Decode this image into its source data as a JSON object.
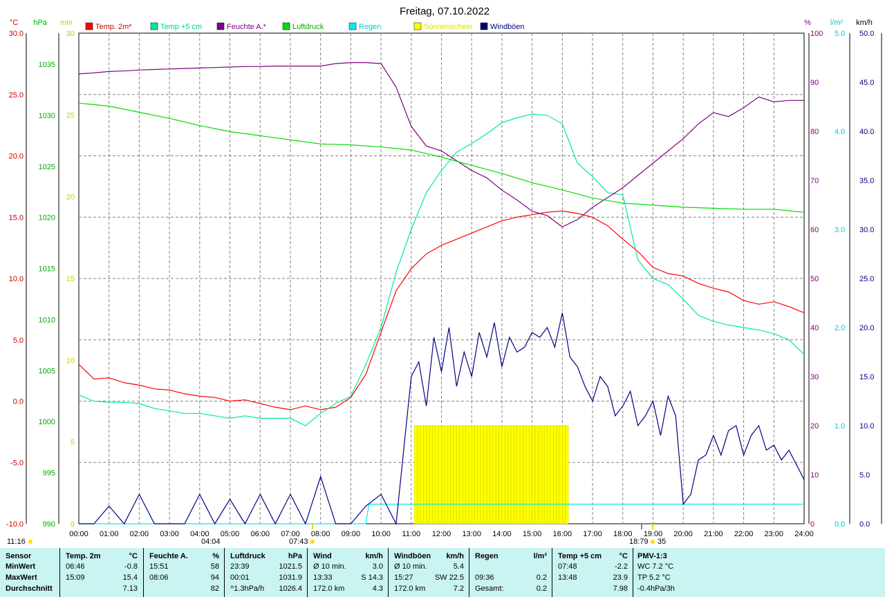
{
  "title": "Freitag, 07.10.2022",
  "colors": {
    "temp2m": "#ff0000",
    "temp5cm": "#00e8a0",
    "feuchte": "#800080",
    "luftdruck": "#00dd00",
    "regen": "#00eeee",
    "sonne": "#ffff00",
    "wind": "#000080",
    "stats_bg": "#c9f4f2"
  },
  "units": {
    "temp": "°C",
    "hpa": "hPa",
    "min": "min",
    "pct": "%",
    "rain": "l/m²",
    "kmh": "km/h"
  },
  "legend": [
    "Temp. 2m*",
    "Temp +5 cm",
    "Feuchte A.*",
    "Luftdruck",
    "Regen",
    "Sonnenschein",
    "Windböen"
  ],
  "axes": {
    "x_ticks": [
      "00:00",
      "01:00",
      "02:00",
      "03:00",
      "04:00",
      "05:00",
      "06:00",
      "07:00",
      "08:00",
      "09:00",
      "10:00",
      "11:00",
      "12:00",
      "13:00",
      "14:00",
      "15:00",
      "16:00",
      "17:00",
      "18:00",
      "19:00",
      "20:00",
      "21:00",
      "22:00",
      "23:00",
      "24:00"
    ],
    "temp_ticks": [
      "30.0",
      "25.0",
      "20.0",
      "15.0",
      "10.0",
      "5.0",
      "0.0",
      "-5.0",
      "-10.0"
    ],
    "hpa_ticks": [
      "1035",
      "1030",
      "1025",
      "1020",
      "1015",
      "1010",
      "1005",
      "1000",
      "995",
      "990"
    ],
    "min_ticks": [
      "30",
      "25",
      "20",
      "15",
      "10",
      "5",
      "0"
    ],
    "pct_ticks": [
      "100",
      "90",
      "80",
      "70",
      "60",
      "50",
      "40",
      "30",
      "20",
      "10",
      "0"
    ],
    "rain_ticks": [
      "5.0",
      "4.0",
      "3.0",
      "2.0",
      "1.0",
      "0.0"
    ],
    "kmh_ticks": [
      "50.0",
      "45.0",
      "40.0",
      "35.0",
      "30.0",
      "25.0",
      "20.0",
      "15.0",
      "10.0",
      "5.0",
      "0.0"
    ]
  },
  "sun_events": {
    "now": "11:16",
    "sunrise_marker": "04:04",
    "sunrise": "07:43",
    "sunset": "18:79",
    "sunset_minutes": "35"
  },
  "chart_data": {
    "type": "line",
    "x_unit": "hour",
    "series": [
      {
        "name": "Temp. 2m*",
        "axis": "°C",
        "x": [
          0,
          0.5,
          1,
          1.5,
          2,
          2.5,
          3,
          3.5,
          4,
          4.5,
          5,
          5.5,
          6,
          6.5,
          7,
          7.5,
          8,
          8.5,
          9,
          9.5,
          10,
          10.5,
          11,
          11.5,
          12,
          12.5,
          13,
          13.5,
          14,
          14.5,
          15,
          15.5,
          16,
          16.5,
          17,
          17.5,
          18,
          18.5,
          19,
          19.5,
          20,
          20.5,
          21,
          21.5,
          22,
          22.5,
          23,
          23.5,
          24
        ],
        "values": [
          3.0,
          1.8,
          1.9,
          1.5,
          1.3,
          1.0,
          0.9,
          0.6,
          0.4,
          0.3,
          0.0,
          0.1,
          -0.2,
          -0.5,
          -0.7,
          -0.4,
          -0.7,
          -0.5,
          0.3,
          2.2,
          5.6,
          9.0,
          10.8,
          12.0,
          12.7,
          13.2,
          13.7,
          14.2,
          14.7,
          15.0,
          15.2,
          15.4,
          15.5,
          15.3,
          15.0,
          14.3,
          13.2,
          12.2,
          10.9,
          10.4,
          10.2,
          9.6,
          9.2,
          8.9,
          8.2,
          7.9,
          8.1,
          7.7,
          7.2
        ]
      },
      {
        "name": "Temp +5 cm",
        "axis": "°C",
        "x": [
          0,
          0.5,
          1,
          1.5,
          2,
          2.5,
          3,
          3.5,
          4,
          4.5,
          5,
          5.5,
          6,
          6.5,
          7,
          7.5,
          8,
          8.5,
          9,
          9.5,
          10,
          10.5,
          11,
          11.5,
          12,
          12.5,
          13,
          13.5,
          14,
          14.5,
          15,
          15.5,
          16,
          16.5,
          17,
          17.5,
          18,
          18.5,
          19,
          19.5,
          20,
          20.5,
          21,
          21.5,
          22,
          22.5,
          23,
          23.5,
          24
        ],
        "values": [
          0.5,
          0,
          -0.1,
          -0.1,
          -0.2,
          -0.6,
          -0.8,
          -1.0,
          -1.0,
          -1.2,
          -1.4,
          -1.2,
          -1.4,
          -1.4,
          -1.4,
          -2.0,
          -1.0,
          -0.2,
          0.4,
          3.0,
          6.0,
          10.5,
          14.0,
          17.0,
          18.8,
          20.3,
          21.0,
          21.8,
          22.7,
          23.1,
          23.4,
          23.3,
          22.6,
          19.4,
          18.3,
          17.0,
          16.8,
          11.5,
          10.0,
          9.5,
          8.3,
          7.0,
          6.5,
          6.2,
          6.0,
          5.8,
          5.5,
          5.0,
          3.8
        ]
      },
      {
        "name": "Feuchte A.*",
        "axis": "%",
        "x": [
          0,
          0.5,
          1,
          1.5,
          2,
          2.5,
          3,
          3.5,
          4,
          4.5,
          5,
          5.5,
          6,
          6.5,
          7,
          7.5,
          8,
          8.5,
          9,
          9.5,
          10,
          10.5,
          11,
          11.5,
          12,
          12.5,
          13,
          13.5,
          14,
          14.5,
          15,
          15.5,
          16,
          16.5,
          17,
          17.5,
          18,
          18.5,
          19,
          19.5,
          20,
          20.5,
          21,
          21.5,
          22,
          22.5,
          23,
          23.5,
          24
        ],
        "values": [
          91.7,
          91.9,
          92.2,
          92.3,
          92.5,
          92.6,
          92.7,
          92.8,
          92.9,
          93.0,
          93.1,
          93.2,
          93.2,
          93.3,
          93.3,
          93.3,
          93.3,
          93.8,
          94.0,
          94.0,
          93.8,
          89.0,
          81.0,
          77.0,
          76.0,
          74.0,
          72.0,
          70.5,
          68.0,
          66.0,
          63.7,
          62.8,
          60.5,
          62.0,
          64.5,
          66.5,
          68.5,
          71.0,
          73.5,
          76.0,
          78.5,
          81.5,
          83.8,
          83.0,
          84.8,
          87.0,
          86.0,
          86.3,
          86.3
        ]
      },
      {
        "name": "Luftdruck",
        "axis": "hPa",
        "x": [
          0,
          1,
          2,
          3,
          4,
          5,
          6,
          7,
          8,
          9,
          10,
          11,
          12,
          13,
          14,
          15,
          16,
          17,
          18,
          19,
          20,
          21,
          22,
          23,
          24
        ],
        "values": [
          1031.2,
          1030.9,
          1030.3,
          1029.7,
          1029.0,
          1028.4,
          1028.0,
          1027.6,
          1027.2,
          1027.1,
          1026.9,
          1026.6,
          1025.9,
          1025.1,
          1024.3,
          1023.4,
          1022.7,
          1021.9,
          1021.4,
          1021.2,
          1021.0,
          1020.9,
          1020.8,
          1020.8,
          1020.5
        ]
      },
      {
        "name": "Regen",
        "axis": "l/m²",
        "x": [
          0,
          9.5,
          9.6,
          24
        ],
        "values": [
          0,
          0,
          0.2,
          0.2
        ]
      },
      {
        "name": "Sonnenschein",
        "axis": "min",
        "x": [
          11.1,
          11.2,
          11.3,
          11.4,
          11.5,
          11.6,
          11.7,
          11.8,
          11.9,
          12.0,
          12.1,
          12.2,
          12.3,
          12.4,
          12.5,
          12.6,
          12.7,
          12.8,
          12.9,
          13.0,
          13.1,
          13.2,
          13.3,
          13.4,
          13.5,
          13.6,
          13.7,
          13.8,
          13.9,
          14.0,
          14.1,
          14.2,
          14.3,
          14.4,
          14.5,
          14.6,
          14.7,
          14.8,
          14.9,
          15.0,
          15.1,
          15.2,
          15.3,
          15.4,
          15.5,
          15.6,
          15.7,
          15.8,
          15.9,
          16.0,
          16.1
        ],
        "values": [
          6,
          6,
          6,
          6,
          6,
          6,
          6,
          6,
          6,
          6,
          6,
          6,
          6,
          6,
          6,
          6,
          6,
          6,
          6,
          6,
          6,
          6,
          6,
          6,
          6,
          6,
          6,
          6,
          6,
          6,
          6,
          6,
          6,
          6,
          6,
          6,
          6,
          6,
          6,
          6,
          6,
          6,
          6,
          6,
          6,
          6,
          6,
          6,
          6,
          6,
          6
        ]
      },
      {
        "name": "Windböen",
        "axis": "km/h",
        "x": [
          0,
          0.5,
          1,
          1.5,
          2,
          2.5,
          3,
          3.5,
          4,
          4.5,
          5,
          5.5,
          6,
          6.5,
          7,
          7.5,
          8,
          8.5,
          9,
          9.5,
          10,
          10.5,
          11,
          11.25,
          11.5,
          11.75,
          12,
          12.25,
          12.5,
          12.75,
          13,
          13.25,
          13.5,
          13.75,
          14,
          14.25,
          14.5,
          14.75,
          15,
          15.25,
          15.5,
          15.75,
          16,
          16.25,
          16.5,
          16.75,
          17,
          17.25,
          17.5,
          17.75,
          18,
          18.25,
          18.5,
          18.75,
          19,
          19.25,
          19.5,
          19.75,
          20,
          20.25,
          20.5,
          20.75,
          21,
          21.25,
          21.5,
          21.75,
          22,
          22.25,
          22.5,
          22.75,
          23,
          23.25,
          23.5,
          23.75,
          24
        ],
        "values": [
          0,
          0,
          1.8,
          0,
          3.0,
          0,
          0,
          0,
          3.0,
          0,
          2.5,
          0,
          3.0,
          0,
          3.0,
          0,
          4.8,
          0,
          0,
          1.8,
          3.0,
          0,
          15.0,
          16.5,
          12.0,
          19.0,
          15.5,
          20.0,
          14.0,
          17.5,
          15.0,
          19.5,
          17.0,
          20.5,
          16.0,
          19.0,
          17.5,
          18.0,
          19.5,
          19.0,
          20.0,
          18.0,
          21.5,
          17.0,
          16.0,
          14.0,
          12.5,
          15.0,
          14.0,
          11.0,
          12.0,
          13.5,
          10.0,
          11.0,
          12.5,
          9.0,
          13.0,
          11.0,
          2.0,
          3.0,
          6.5,
          7.0,
          9.0,
          7.0,
          9.5,
          10.0,
          7.0,
          9.0,
          10.0,
          7.5,
          8.0,
          6.5,
          7.5,
          6.0,
          4.5
        ]
      }
    ]
  },
  "stats": {
    "headers": {
      "sensor": "Sensor",
      "temp2m": "Temp. 2m",
      "feuchte": "Feuchte A.",
      "luftdruck": "Luftdruck",
      "wind": "Wind",
      "windboen": "Windböen",
      "regen": "Regen",
      "temp5": "Temp +5 cm",
      "pmv": "PMV-1:3"
    },
    "rows": [
      "MinWert",
      "MaxWert",
      "Durchschnitt"
    ],
    "temp2m": [
      [
        "06:46",
        "-0.8"
      ],
      [
        "15:09",
        "15.4"
      ],
      [
        "",
        "7.13"
      ]
    ],
    "feuchte": [
      [
        "15:51",
        "58"
      ],
      [
        "08:06",
        "94"
      ],
      [
        "",
        "82"
      ]
    ],
    "luftdruck": [
      [
        "23:39",
        "1021.5"
      ],
      [
        "00:01",
        "1031.9"
      ],
      [
        "^1.3hPa/h",
        "1026.4"
      ]
    ],
    "wind": [
      [
        "Ø 10 min.",
        "3.0"
      ],
      [
        "13:33",
        "S 14.3"
      ],
      [
        "172.0 km",
        "4.3"
      ]
    ],
    "windboen": [
      [
        "Ø 10 min.",
        "5.4"
      ],
      [
        "15:27",
        "SW 22.5"
      ],
      [
        "172.0 km",
        "7.2"
      ]
    ],
    "regen": [
      [
        "",
        ""
      ],
      [
        "09:36",
        "0.2"
      ],
      [
        "Gesamt:",
        "0.2"
      ]
    ],
    "temp5": [
      [
        "07:48",
        "-2.2"
      ],
      [
        "13:48",
        "23.9"
      ],
      [
        "",
        "7.98"
      ]
    ],
    "pmv": [
      "WC 7.2 °C",
      "TP 5.2 °C",
      "-0.4hPa/3h"
    ]
  }
}
